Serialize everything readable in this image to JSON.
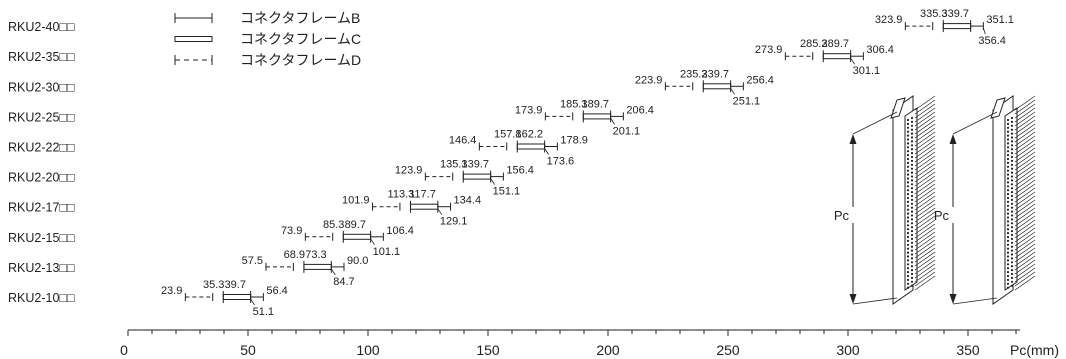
{
  "chart_data": {
    "type": "range",
    "xlabel": "Pc(mm)",
    "xlim": [
      0,
      370
    ],
    "xticks": [
      0,
      50,
      100,
      150,
      200,
      250,
      300,
      350
    ],
    "minor_tick_step": 10,
    "legend": [
      {
        "style": "B",
        "label": "コネクタフレームB"
      },
      {
        "style": "C",
        "label": "コネクタフレームC"
      },
      {
        "style": "D",
        "label": "コネクタフレームD"
      }
    ],
    "categories": [
      "RKU2-10□□",
      "RKU2-13□□",
      "RKU2-15□□",
      "RKU2-17□□",
      "RKU2-20□□",
      "RKU2-22□□",
      "RKU2-25□□",
      "RKU2-30□□",
      "RKU2-35□□",
      "RKU2-40□□"
    ],
    "rows": [
      {
        "D": [
          23.9,
          35.3
        ],
        "C": [
          39.7,
          51.1
        ],
        "B": [
          51.1,
          56.4
        ],
        "labels": [
          "23.9",
          "35.3",
          "39.7",
          "56.4",
          "51.1"
        ]
      },
      {
        "D": [
          57.5,
          68.9
        ],
        "C": [
          73.3,
          84.7
        ],
        "B": [
          84.7,
          90.0
        ],
        "labels": [
          "57.5",
          "68.9",
          "73.3",
          "90.0",
          "84.7"
        ]
      },
      {
        "D": [
          73.9,
          85.3
        ],
        "C": [
          89.7,
          101.1
        ],
        "B": [
          101.1,
          106.4
        ],
        "labels": [
          "73.9",
          "85.3",
          "89.7",
          "106.4",
          "101.1"
        ]
      },
      {
        "D": [
          101.9,
          113.3
        ],
        "C": [
          117.7,
          129.1
        ],
        "B": [
          129.1,
          134.4
        ],
        "labels": [
          "101.9",
          "113.3",
          "117.7",
          "134.4",
          "129.1"
        ]
      },
      {
        "D": [
          123.9,
          135.3
        ],
        "C": [
          139.7,
          151.1
        ],
        "B": [
          151.1,
          156.4
        ],
        "labels": [
          "123.9",
          "135.3",
          "139.7",
          "156.4",
          "151.1"
        ]
      },
      {
        "D": [
          146.4,
          157.8
        ],
        "C": [
          162.2,
          173.6
        ],
        "B": [
          173.6,
          178.9
        ],
        "labels": [
          "146.4",
          "157.8",
          "162.2",
          "178.9",
          "173.6"
        ]
      },
      {
        "D": [
          173.9,
          185.3
        ],
        "C": [
          189.7,
          201.1
        ],
        "B": [
          201.1,
          206.4
        ],
        "labels": [
          "173.9",
          "185.3",
          "189.7",
          "206.4",
          "201.1"
        ]
      },
      {
        "D": [
          223.9,
          235.3
        ],
        "C": [
          239.7,
          251.1
        ],
        "B": [
          251.1,
          256.4
        ],
        "labels": [
          "223.9",
          "235.3",
          "239.7",
          "256.4",
          "251.1"
        ]
      },
      {
        "D": [
          273.9,
          285.3
        ],
        "C": [
          289.7,
          301.1
        ],
        "B": [
          301.1,
          306.4
        ],
        "labels": [
          "273.9",
          "285.3",
          "289.7",
          "306.4",
          "301.1"
        ]
      },
      {
        "D": [
          323.9,
          335.3
        ],
        "C": [
          339.7,
          351.1
        ],
        "B": [
          351.1,
          356.4
        ],
        "labels": [
          "323.9",
          "335.3",
          "339.7",
          "351.1",
          "356.4"
        ]
      }
    ],
    "illustration": {
      "label": "Pc"
    }
  }
}
